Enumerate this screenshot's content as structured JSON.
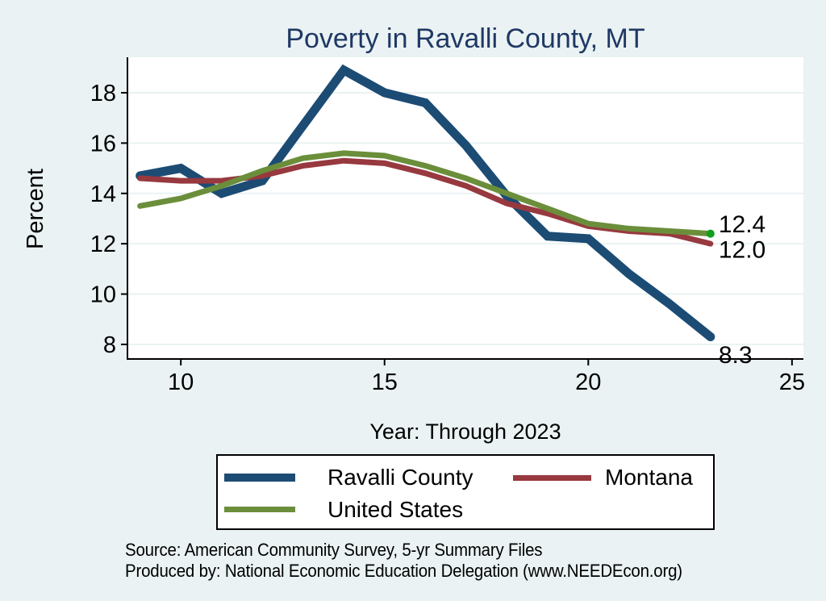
{
  "y_axis": {
    "label": "Percent"
  },
  "x_axis": {
    "label": "Year: Through 2023"
  },
  "legend": {
    "items": [
      {
        "label": "Ravalli County"
      },
      {
        "label": "Montana"
      },
      {
        "label": "United States"
      }
    ]
  },
  "source": {
    "line1": "Source: American Community Survey, 5-yr Summary Files",
    "line2": "Produced by: National Economic Education Delegation (www.NEEDEcon.org)"
  },
  "chart_data": {
    "type": "line",
    "title": "Poverty in Ravalli County, MT",
    "xlabel": "Year: Through 2023",
    "ylabel": "Percent",
    "x": [
      9,
      10,
      11,
      12,
      13,
      14,
      15,
      16,
      17,
      18,
      19,
      20,
      21,
      22,
      23
    ],
    "series": [
      {
        "name": "Ravalli County",
        "color": "#1C4C74",
        "values": [
          14.7,
          15.0,
          14.0,
          14.5,
          16.7,
          18.9,
          18.0,
          17.6,
          15.9,
          13.9,
          12.3,
          12.2,
          10.8,
          9.6,
          8.3
        ],
        "end_label": "8.3"
      },
      {
        "name": "Montana",
        "color": "#97393F",
        "values": [
          14.6,
          14.5,
          14.5,
          14.7,
          15.1,
          15.3,
          15.2,
          14.8,
          14.3,
          13.6,
          13.2,
          12.7,
          12.5,
          12.4,
          12.0
        ],
        "end_label": "12.0"
      },
      {
        "name": "United States",
        "color": "#6B8E3B",
        "values": [
          13.5,
          13.8,
          14.3,
          14.9,
          15.4,
          15.6,
          15.5,
          15.1,
          14.6,
          14.0,
          13.4,
          12.8,
          12.6,
          12.5,
          12.4
        ],
        "end_label": "12.4"
      }
    ],
    "x_ticks": [
      10,
      15,
      20,
      25
    ],
    "y_ticks": [
      8,
      10,
      12,
      14,
      16,
      18
    ],
    "xlim": [
      8.69,
      25.28
    ],
    "ylim": [
      7.42,
      19.41
    ],
    "grid": true,
    "legend_position": "bottom",
    "end_dot_color": "#10A01E",
    "colors": {
      "background": "#EAF2F3",
      "plot_background": "#FFFFFF",
      "gridline": "#EAF2F3",
      "axis": "#000000",
      "title": "#1F3864"
    }
  }
}
